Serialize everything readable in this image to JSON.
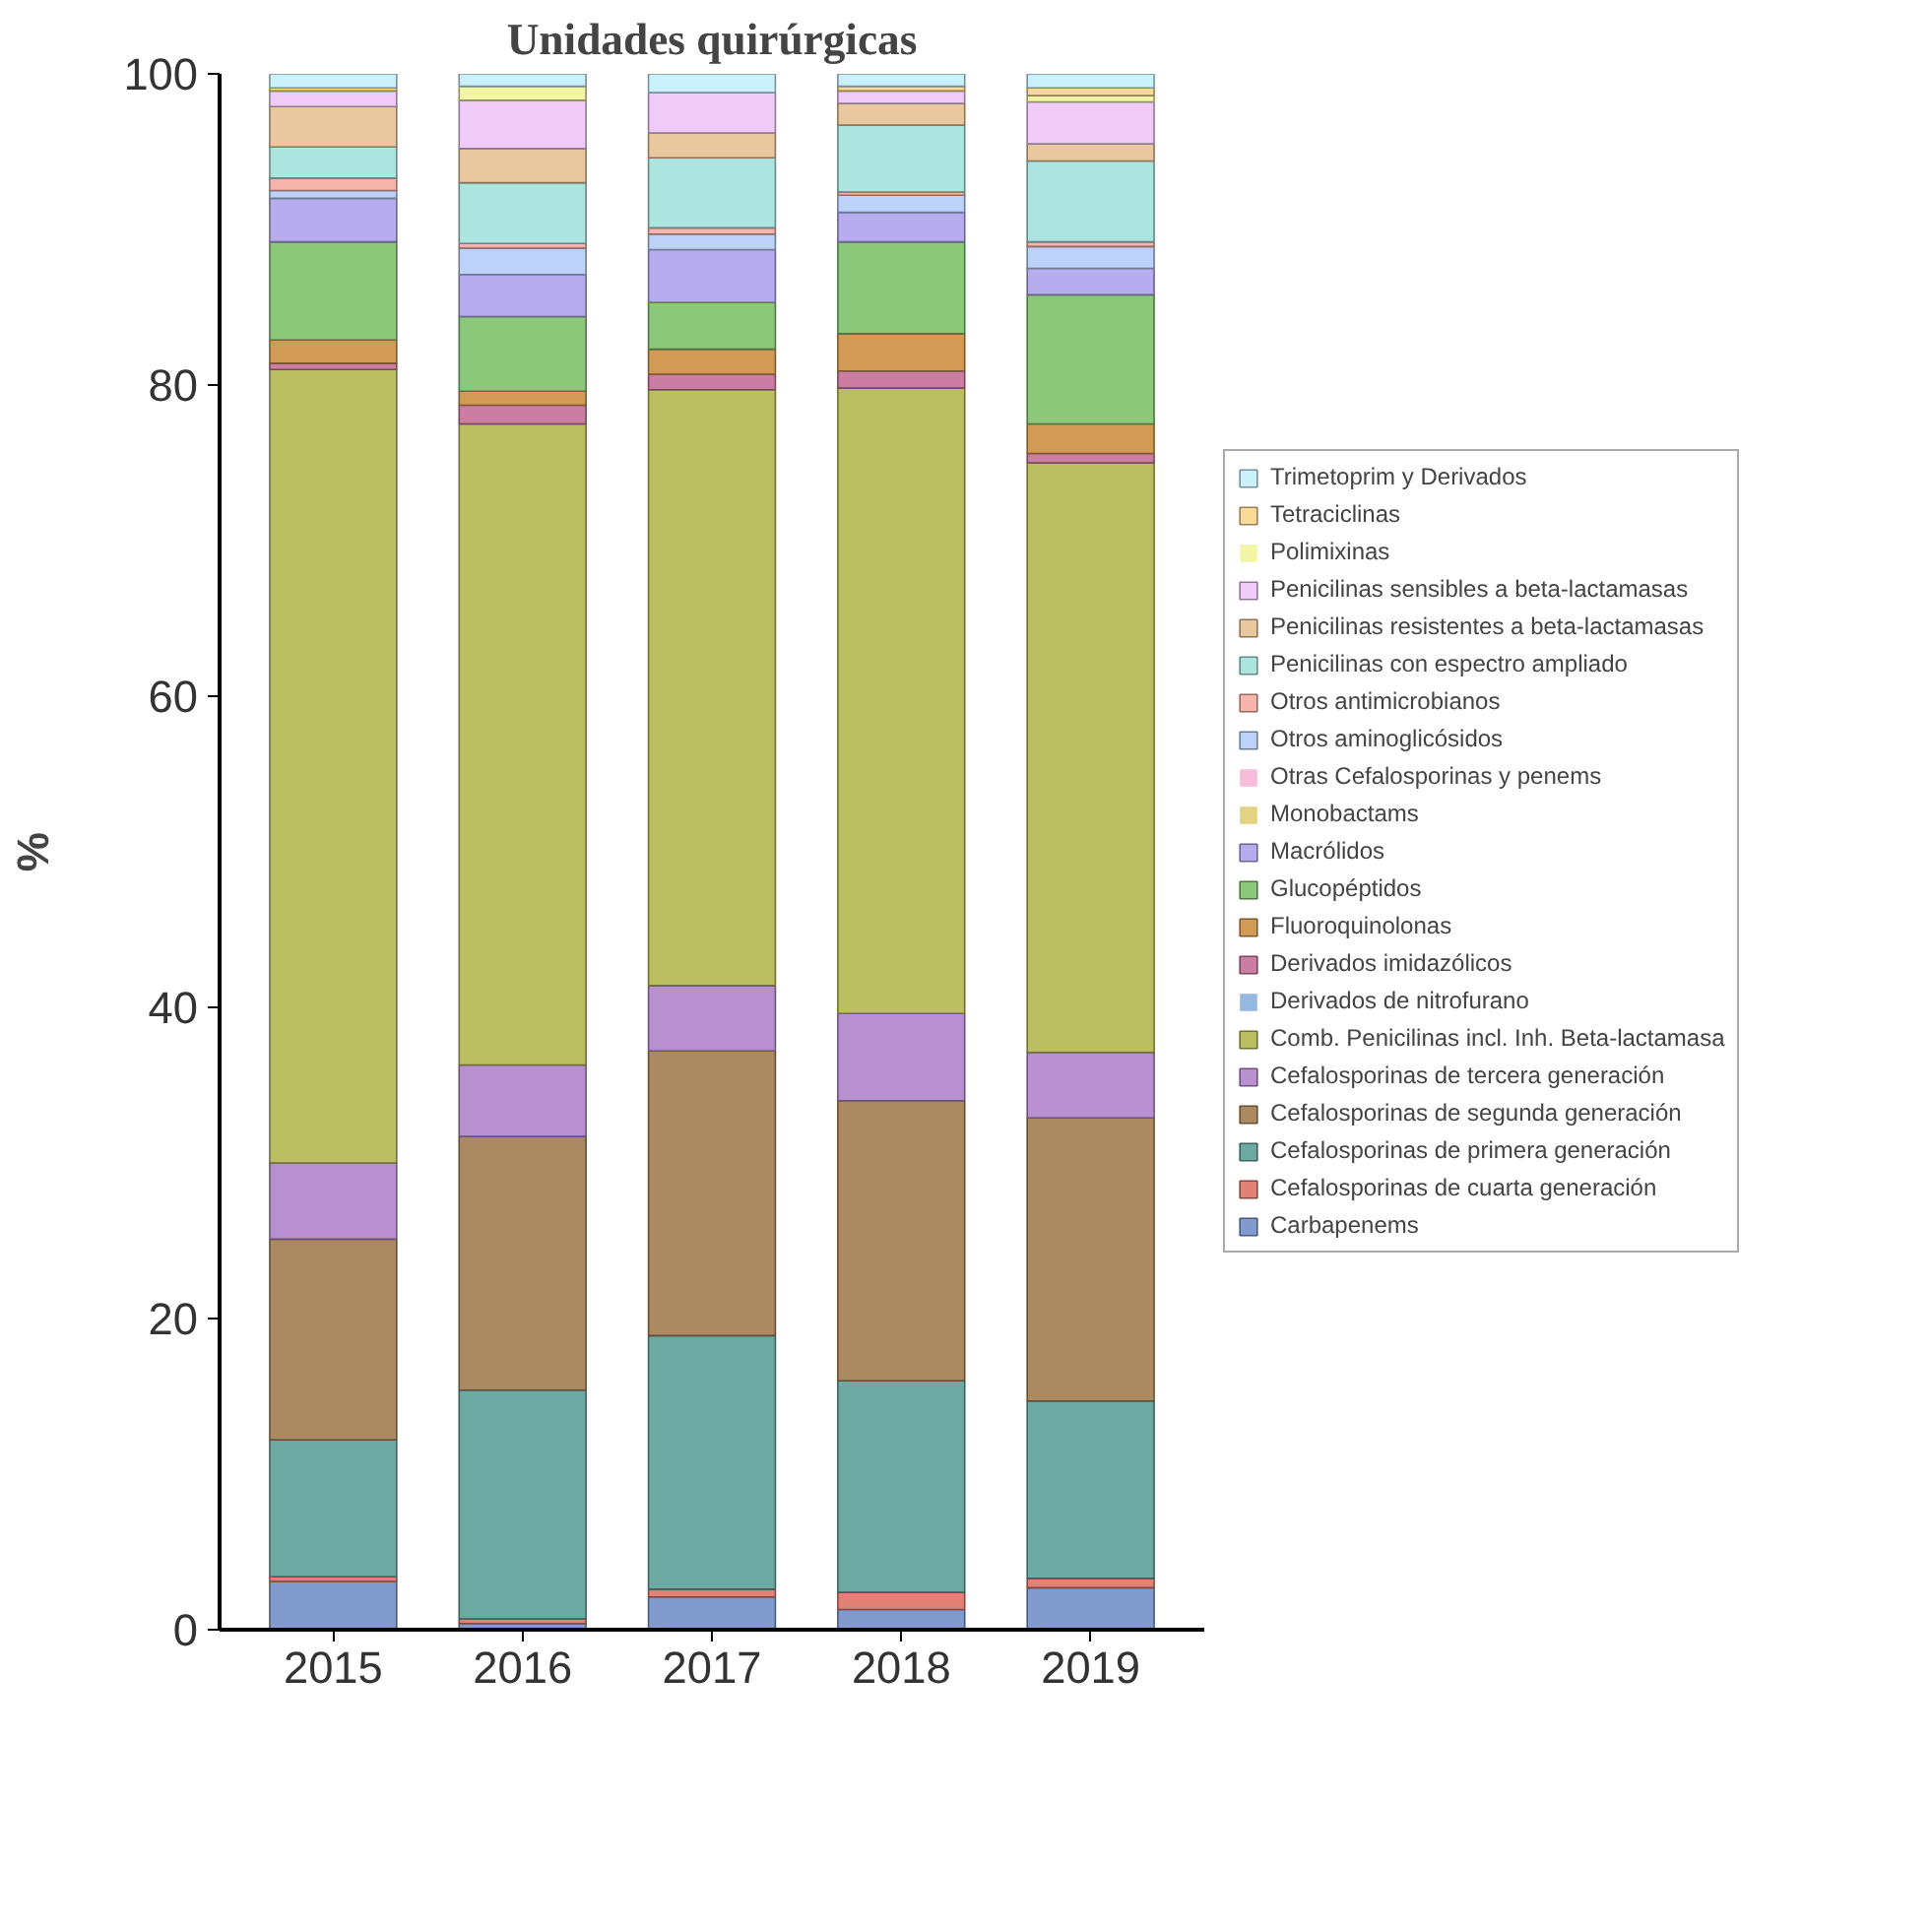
{
  "chart_data": {
    "type": "bar",
    "stacked": true,
    "title": "Unidades quirúrgicas",
    "ylabel": "%",
    "categories": [
      "2015",
      "2016",
      "2017",
      "2018",
      "2019"
    ],
    "ylim": [
      0,
      100
    ],
    "yticks": [
      0,
      20,
      40,
      60,
      80,
      100
    ],
    "grid": false,
    "legend": "right",
    "series": [
      {
        "name": "Carbapenems",
        "color": "#7b96cc",
        "values": [
          3.1,
          0.4,
          2.1,
          1.3,
          2.7
        ]
      },
      {
        "name": "Cefalosporinas de cuarta generación",
        "color": "#e07a6e",
        "values": [
          0.3,
          0.3,
          0.5,
          1.1,
          0.6
        ]
      },
      {
        "name": "Cefalosporinas de primera generación",
        "color": "#66a59f",
        "values": [
          8.8,
          14.7,
          16.3,
          13.6,
          11.4
        ]
      },
      {
        "name": "Cefalosporinas de segunda generación",
        "color": "#a6845a",
        "values": [
          12.9,
          16.3,
          18.3,
          18.0,
          18.2
        ]
      },
      {
        "name": "Cefalosporinas de tercera generación",
        "color": "#b48acc",
        "values": [
          4.9,
          4.6,
          4.2,
          5.6,
          4.2
        ]
      },
      {
        "name": "Comb. Penicilinas incl. Inh. Beta-lactamasa",
        "color": "#b8bb5a",
        "values": [
          51.0,
          41.2,
          38.3,
          40.2,
          37.9
        ]
      },
      {
        "name": "Derivados de nitrofurano",
        "color": "#8fb4dc",
        "values": [
          0,
          0,
          0,
          0,
          0
        ]
      },
      {
        "name": "Derivados imidazólicos",
        "color": "#c8779c",
        "values": [
          0.4,
          1.2,
          1.0,
          1.1,
          0.6
        ]
      },
      {
        "name": "Fluoroquinolonas",
        "color": "#cf964c",
        "values": [
          1.5,
          0.9,
          1.6,
          2.4,
          1.9
        ]
      },
      {
        "name": "Glucopéptidos",
        "color": "#86c572",
        "values": [
          6.3,
          4.8,
          3.0,
          5.9,
          8.3
        ]
      },
      {
        "name": "Macrólidos",
        "color": "#b3a8ec",
        "values": [
          2.8,
          2.7,
          3.4,
          1.9,
          1.7
        ]
      },
      {
        "name": "Monobactams",
        "color": "#e0d07a",
        "values": [
          0,
          0,
          0,
          0,
          0
        ]
      },
      {
        "name": "Otras Cefalosporinas y penems",
        "color": "#f5b8d8",
        "values": [
          0,
          0,
          0,
          0,
          0
        ]
      },
      {
        "name": "Otros aminoglicósidos",
        "color": "#b8d0f8",
        "values": [
          0.5,
          1.7,
          1.0,
          1.1,
          1.4
        ]
      },
      {
        "name": "Otros antimicrobianos",
        "color": "#f5b0a8",
        "values": [
          0.8,
          0.3,
          0.4,
          0.2,
          0.3
        ]
      },
      {
        "name": "Penicilinas con espectro ampliado",
        "color": "#a8e4de",
        "values": [
          2.0,
          3.9,
          4.5,
          4.3,
          5.2
        ]
      },
      {
        "name": "Penicilinas resistentes a beta-lactamasas",
        "color": "#e8c49a",
        "values": [
          2.6,
          2.2,
          1.6,
          1.4,
          1.1
        ]
      },
      {
        "name": "Penicilinas sensibles a beta-lactamasas",
        "color": "#f0c8f8",
        "values": [
          1.0,
          3.1,
          2.6,
          0.8,
          2.7
        ]
      },
      {
        "name": "Polimixinas",
        "color": "#f0f4a0",
        "values": [
          0,
          0.9,
          0,
          0,
          0.4
        ]
      },
      {
        "name": "Tetraciclinas",
        "color": "#f8d890",
        "values": [
          0.2,
          0,
          0,
          0.3,
          0.5
        ]
      },
      {
        "name": "Trimetoprim y Derivados",
        "color": "#c8f0fc",
        "values": [
          0.9,
          0.8,
          1.2,
          0.8,
          0.9
        ]
      }
    ]
  }
}
